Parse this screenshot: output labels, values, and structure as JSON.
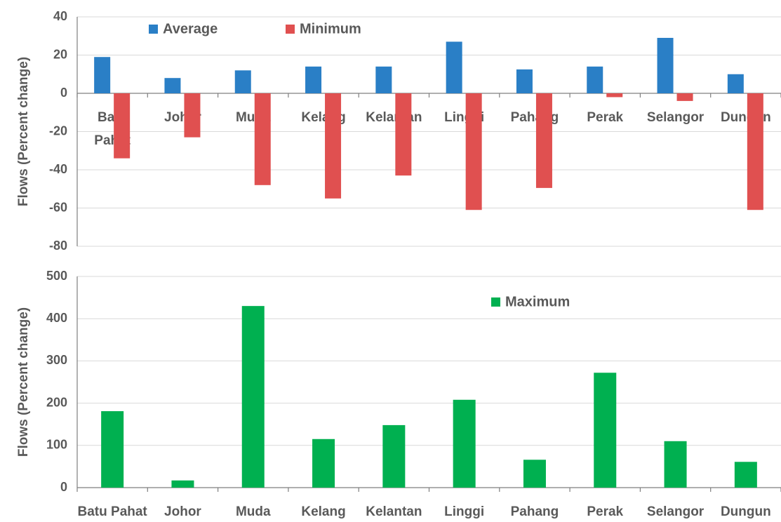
{
  "chart_data": [
    {
      "type": "bar",
      "ylabel": "Flows (Percent change)",
      "categories": [
        "Batu Pahat",
        "Johor",
        "Muda",
        "Kelang",
        "Kelantan",
        "Linggi",
        "Pahang",
        "Perak",
        "Selangor",
        "Dungun"
      ],
      "series": [
        {
          "name": "Average",
          "color": "#2a7fc6",
          "values": [
            19,
            8,
            12,
            14,
            14,
            27,
            12.5,
            14,
            29,
            10
          ]
        },
        {
          "name": "Minimum",
          "color": "#e05050",
          "values": [
            -34,
            -23,
            -48,
            -55,
            -43,
            -61,
            -49.5,
            -2,
            -4,
            -61
          ]
        }
      ],
      "ylim": [
        -80,
        40
      ],
      "yticks": [
        -80,
        -60,
        -40,
        -20,
        0,
        20,
        40
      ],
      "grid": true
    },
    {
      "type": "bar",
      "ylabel": "Flows (Percent change)",
      "categories": [
        "Batu Pahat",
        "Johor",
        "Muda",
        "Kelang",
        "Kelantan",
        "Linggi",
        "Pahang",
        "Perak",
        "Selangor",
        "Dungun"
      ],
      "series": [
        {
          "name": "Maximum",
          "color": "#00b050",
          "values": [
            181,
            17,
            430,
            115,
            148,
            208,
            66,
            272,
            110,
            61
          ]
        }
      ],
      "ylim": [
        0,
        500
      ],
      "yticks": [
        0,
        100,
        200,
        300,
        400,
        500
      ],
      "grid": true
    }
  ]
}
